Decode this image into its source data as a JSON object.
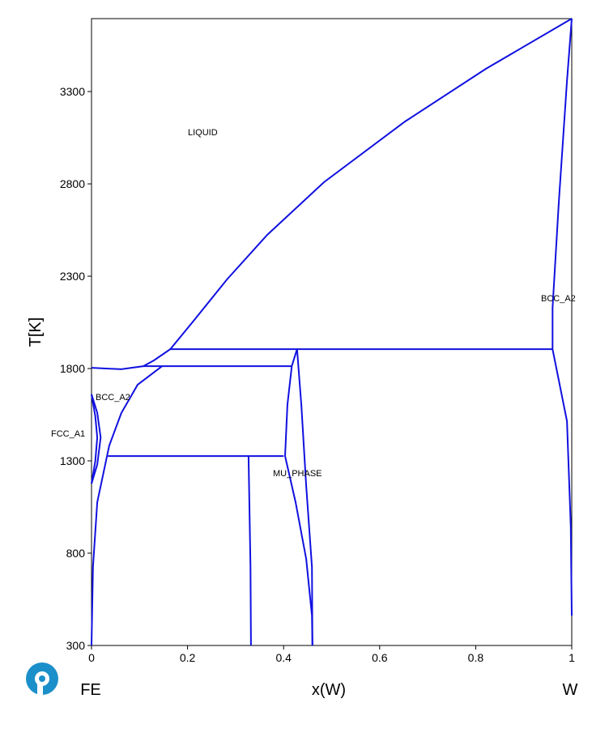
{
  "chart_data": {
    "type": "line",
    "xlabel": "x(W)",
    "ylabel": "T[K]",
    "left_element": "FE",
    "right_element": "W",
    "annotations": [
      "LIQUID",
      "BCC_A2",
      "BCC_A2",
      "FCC_A1",
      "MU_PHASE"
    ],
    "xlim": [
      0,
      1
    ],
    "ylim": [
      300,
      3695
    ],
    "xticks": [
      0,
      0.2,
      0.4,
      0.6,
      0.8,
      1
    ],
    "yticks": [
      300,
      800,
      1300,
      1800,
      2300,
      2800,
      3300
    ],
    "series": [
      {
        "color": "#1010e0",
        "x": [
          1.0,
          0.821,
          0.653,
          0.484,
          0.366,
          0.282,
          0.214,
          0.164,
          0.13,
          0.108,
          0.062,
          0.029,
          0
        ],
        "values": [
          3695,
          3423,
          3138,
          2809,
          2524,
          2282,
          2063,
          1905,
          1844,
          1813,
          1796,
          1800,
          1804
        ]
      },
      {
        "color": "#1010e0",
        "x": [
          0.164,
          0.96
        ],
        "values": [
          1905,
          1905
        ]
      },
      {
        "color": "#1010e0",
        "x": [
          1.0,
          0.99,
          0.973,
          0.96,
          0.96,
          0.99,
          0.998,
          1.0
        ],
        "values": [
          3695,
          3357,
          2699,
          2129,
          1905,
          1515,
          945,
          462
        ]
      },
      {
        "color": "#1010e0",
        "x": [
          0.108,
          0.417
        ],
        "values": [
          1813,
          1813
        ]
      },
      {
        "color": "#1010e0",
        "x": [
          0.417,
          0.428
        ],
        "values": [
          1813,
          1905
        ]
      },
      {
        "color": "#1010e0",
        "x": [
          0.417,
          0.408,
          0.403,
          0.425,
          0.447,
          0.459,
          0.46
        ],
        "values": [
          1813,
          1603,
          1326,
          1076,
          769,
          462,
          300
        ]
      },
      {
        "color": "#1010e0",
        "x": [
          0.428,
          0.437,
          0.447,
          0.459,
          0.46
        ],
        "values": [
          1905,
          1603,
          1164,
          725,
          300
        ]
      },
      {
        "color": "#1010e0",
        "x": [
          0.147,
          0.096,
          0.062,
          0.037,
          0.012,
          0.003,
          0
        ],
        "values": [
          1813,
          1712,
          1559,
          1383,
          1076,
          725,
          300
        ]
      },
      {
        "color": "#1010e0",
        "x": [
          0.034,
          0.4
        ],
        "values": [
          1326,
          1326
        ]
      },
      {
        "color": "#1010e0",
        "x": [
          0.327,
          0.331,
          0.332
        ],
        "values": [
          1326,
          725,
          300
        ]
      },
      {
        "color": "#1010e0",
        "x": [
          0,
          0.012,
          0.019,
          0.012,
          0
        ],
        "values": [
          1660,
          1560,
          1427,
          1280,
          1177
        ]
      },
      {
        "color": "#1010e0",
        "x": [
          0,
          0.008,
          0.012,
          0.008,
          0
        ],
        "values": [
          1660,
          1540,
          1427,
          1300,
          1177
        ]
      }
    ]
  }
}
